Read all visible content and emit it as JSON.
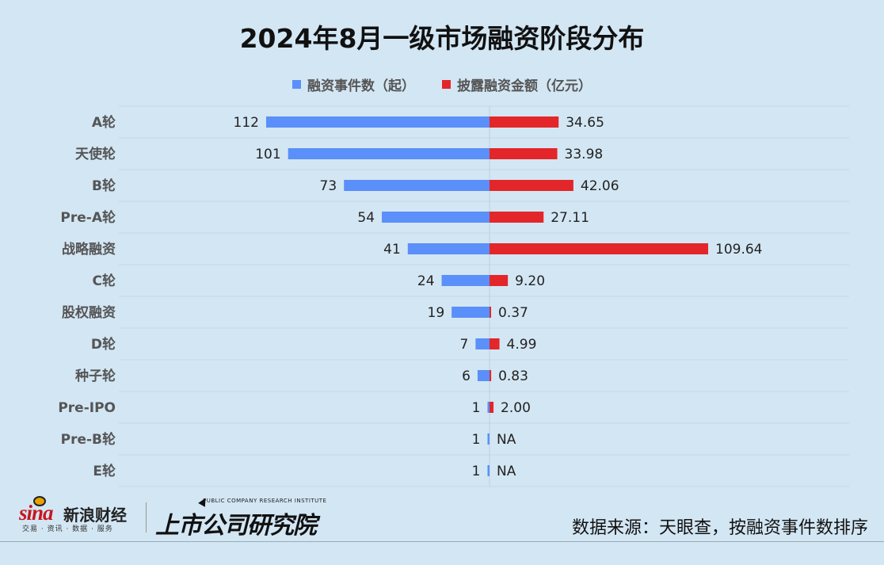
{
  "chart_data": {
    "type": "bar",
    "orientation": "horizontal-diverging",
    "title": "2024年8月一级市场融资阶段分布",
    "categories": [
      "A轮",
      "天使轮",
      "B轮",
      "Pre-A轮",
      "战略融资",
      "C轮",
      "股权融资",
      "D轮",
      "种子轮",
      "Pre-IPO",
      "Pre-B轮",
      "E轮"
    ],
    "series": [
      {
        "name": "融资事件数（起）",
        "color": "#5b8ff9",
        "side": "left",
        "values": [
          112,
          101,
          73,
          54,
          41,
          24,
          19,
          7,
          6,
          1,
          1,
          1
        ],
        "labels": [
          "112",
          "101",
          "73",
          "54",
          "41",
          "24",
          "19",
          "7",
          "6",
          "1",
          "1",
          "1"
        ]
      },
      {
        "name": "披露融资金额（亿元）",
        "color": "#e3262a",
        "side": "right",
        "values": [
          34.65,
          33.98,
          42.06,
          27.11,
          109.64,
          9.2,
          0.37,
          4.99,
          0.83,
          2.0,
          null,
          null
        ],
        "labels": [
          "34.65",
          "33.98",
          "42.06",
          "27.11",
          "109.64",
          "9.20",
          "0.37",
          "4.99",
          "0.83",
          "2.00",
          "NA",
          "NA"
        ]
      }
    ],
    "left_max": 112,
    "right_max": 109.64,
    "legend_position": "top-center",
    "grid": true
  },
  "footer": {
    "source": "数据来源：天眼查，按融资事件数排序",
    "sina_logo_text": "sina",
    "sina_cn": "新浪财经",
    "sina_sub": "交易 · 资讯 · 数据 · 服务",
    "institute_en": "PUBLIC COMPANY RESEARCH INSTITUTE",
    "institute_cn": "上市公司研究院"
  }
}
